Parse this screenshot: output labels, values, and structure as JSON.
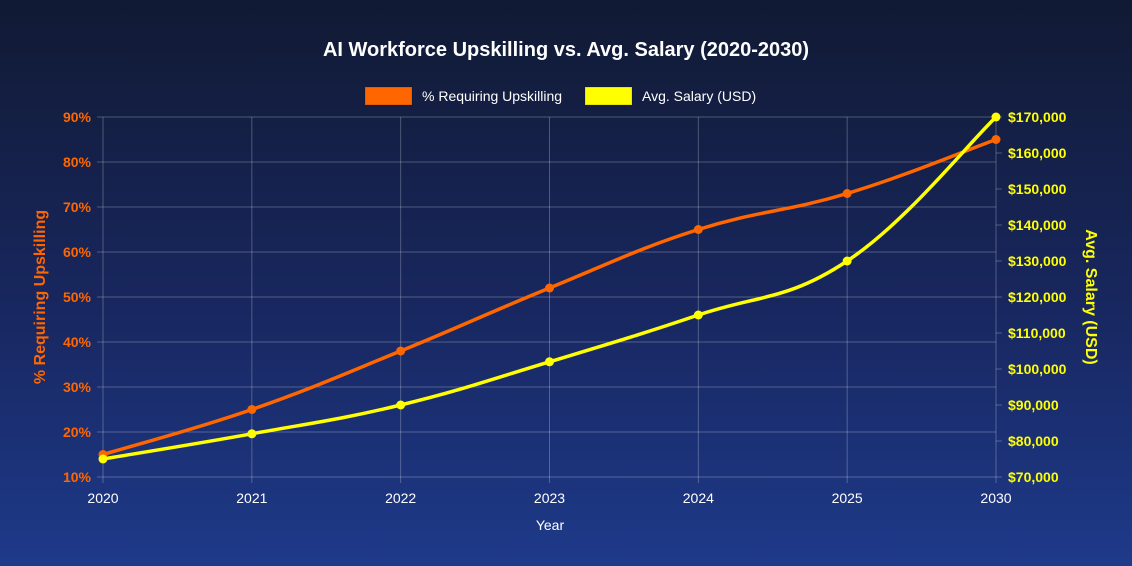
{
  "chart_data": {
    "type": "line",
    "title": "AI Workforce Upskilling vs. Avg. Salary (2020-2030)",
    "xlabel": "Year",
    "categories": [
      "2020",
      "2021",
      "2022",
      "2023",
      "2024",
      "2025",
      "2030"
    ],
    "y_left": {
      "label": "% Requiring Upskilling",
      "range": [
        10,
        90
      ],
      "ticks": [
        "10%",
        "20%",
        "30%",
        "40%",
        "50%",
        "60%",
        "70%",
        "80%",
        "90%"
      ],
      "color": "#ff6600"
    },
    "y_right": {
      "label": "Avg. Salary (USD)",
      "range": [
        70000,
        170000
      ],
      "ticks": [
        "$70,000",
        "$80,000",
        "$90,000",
        "$100,000",
        "$110,000",
        "$120,000",
        "$130,000",
        "$140,000",
        "$150,000",
        "$160,000",
        "$170,000"
      ],
      "color": "#ffff00"
    },
    "series": [
      {
        "name": "% Requiring Upskilling",
        "axis": "left",
        "color": "#ff6600",
        "values": [
          15,
          25,
          38,
          52,
          65,
          73,
          85
        ]
      },
      {
        "name": "Avg. Salary (USD)",
        "axis": "right",
        "color": "#ffff00",
        "values": [
          75000,
          82000,
          90000,
          102000,
          115000,
          130000,
          170000
        ]
      }
    ],
    "grid": true,
    "legend": "top"
  }
}
